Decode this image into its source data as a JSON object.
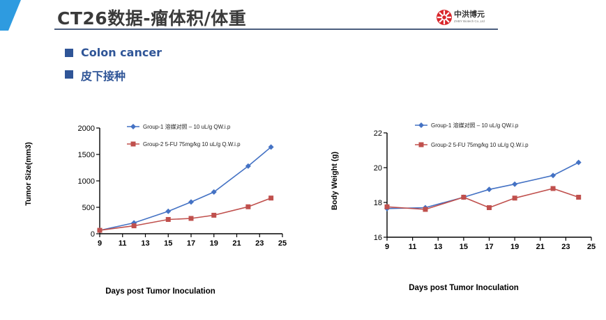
{
  "slide": {
    "title": "CT26数据-瘤体积/体重",
    "logo_name": "中洪博元",
    "logo_subtitle": "ZHBY Biotech Co.,Ltd",
    "bullets": [
      "Colon cancer",
      "皮下接种"
    ],
    "colors": {
      "accent": "#2e9be0",
      "bullet": "#2f5597",
      "rule": "#4a5d7e",
      "logo_red": "#d9262b"
    }
  },
  "chart_data": [
    {
      "type": "line",
      "xlabel": "Days post Tumor Inoculation",
      "ylabel": "Tumor Size(mm3)",
      "xlim": [
        9,
        25
      ],
      "ylim": [
        0,
        2000
      ],
      "xticks": [
        9,
        11,
        13,
        15,
        17,
        19,
        21,
        23,
        25
      ],
      "yticks": [
        0,
        500,
        1000,
        1500,
        2000
      ],
      "legend_position": "top-right",
      "series": [
        {
          "name": "Group-1 溶媒对照 – 10 uL/g QW.i.p",
          "color": "#4472c4",
          "marker": "diamond",
          "x": [
            9,
            12,
            15,
            17,
            19,
            22,
            24
          ],
          "values": [
            65,
            205,
            425,
            600,
            790,
            1280,
            1640
          ]
        },
        {
          "name": "Group-2 5-FU 75mg/kg 10 uL/g Q.W.i.p",
          "color": "#c0504d",
          "marker": "square",
          "x": [
            9,
            12,
            15,
            17,
            19,
            22,
            24
          ],
          "values": [
            65,
            150,
            270,
            290,
            350,
            510,
            675
          ]
        }
      ]
    },
    {
      "type": "line",
      "xlabel": "Days post Tumor Inoculation",
      "ylabel": "Body Weight (g)",
      "xlim": [
        9,
        25
      ],
      "ylim": [
        16,
        22
      ],
      "xticks": [
        9,
        11,
        13,
        15,
        17,
        19,
        21,
        23,
        25
      ],
      "yticks": [
        16,
        18,
        20,
        22
      ],
      "legend_position": "top-right",
      "series": [
        {
          "name": "Group-1 溶媒对照 – 10 uL/g QW.i.p",
          "color": "#4472c4",
          "marker": "diamond",
          "x": [
            9,
            12,
            15,
            17,
            19,
            22,
            24
          ],
          "values": [
            17.65,
            17.7,
            18.3,
            18.75,
            19.05,
            19.55,
            20.3
          ]
        },
        {
          "name": "Group-2 5-FU 75mg/kg 10 uL/g Q.W.i.p",
          "color": "#c0504d",
          "marker": "square",
          "x": [
            9,
            12,
            15,
            17,
            19,
            22,
            24
          ],
          "values": [
            17.75,
            17.6,
            18.3,
            17.7,
            18.25,
            18.8,
            18.3
          ]
        }
      ]
    }
  ]
}
